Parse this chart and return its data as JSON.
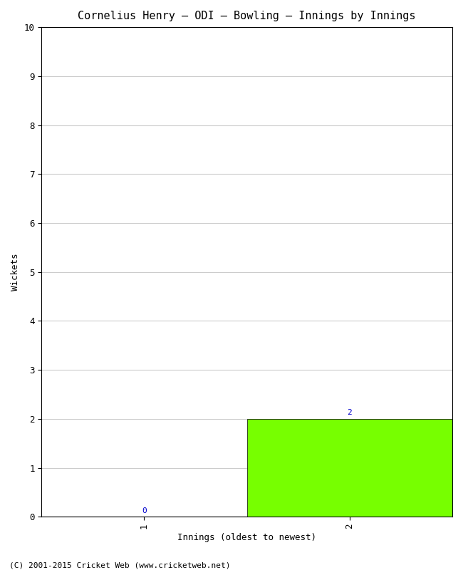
{
  "title": "Cornelius Henry – ODI – Bowling – Innings by Innings",
  "xlabel": "Innings (oldest to newest)",
  "ylabel": "Wickets",
  "categories": [
    1,
    2
  ],
  "values": [
    0,
    2
  ],
  "bar_color": "#77ff00",
  "bar_edge_color": "#000000",
  "ylim": [
    0,
    10
  ],
  "yticks": [
    0,
    1,
    2,
    3,
    4,
    5,
    6,
    7,
    8,
    9,
    10
  ],
  "xticks": [
    1,
    2
  ],
  "xlim": [
    0.5,
    2.5
  ],
  "background_color": "#ffffff",
  "grid_color": "#cccccc",
  "footer": "(C) 2001-2015 Cricket Web (www.cricketweb.net)",
  "title_fontsize": 11,
  "label_fontsize": 9,
  "tick_fontsize": 9,
  "footer_fontsize": 8,
  "annotation_color": "#0000cc",
  "annotation_fontsize": 8
}
